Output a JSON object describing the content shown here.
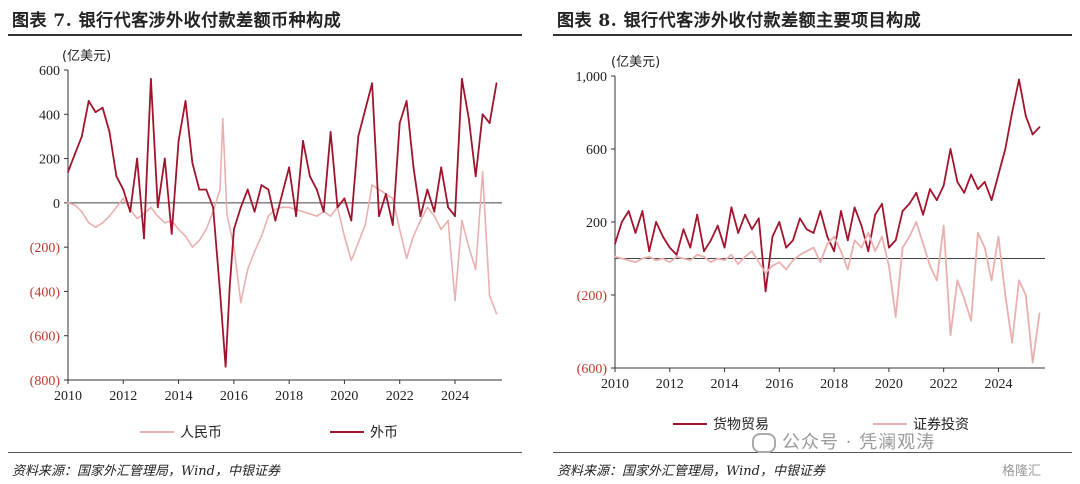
{
  "figures": [
    {
      "title": "图表 7. 银行代客涉外收付款差额币种构成",
      "source": "资料来源：国家外汇管理局，Wind，中银证券"
    },
    {
      "title": "图表 8. 银行代客涉外收付款差额主要项目构成",
      "source": "资料来源：国家外汇管理局，Wind，中银证券"
    }
  ],
  "watermark": {
    "text": "公众号 · 凭澜观涛",
    "logo_text": "格隆汇"
  },
  "chart_data": [
    {
      "type": "line",
      "unit_label": "(亿美元)",
      "ylim": [
        -800,
        600
      ],
      "yticks": [
        600,
        400,
        200,
        0,
        -200,
        -400,
        -600,
        -800
      ],
      "ytick_labels": [
        "600",
        "400",
        "200",
        "0",
        "(200)",
        "(400)",
        "(600)",
        "(800)"
      ],
      "negative_tick_color": "#c0392b",
      "xlim": [
        2010,
        2025.7
      ],
      "xticks": [
        "2010",
        "2012",
        "2014",
        "2016",
        "2018",
        "2020",
        "2022",
        "2024"
      ],
      "grid": false,
      "legend_position": "bottom",
      "series": [
        {
          "name": "人民币",
          "color": "#eab0b0",
          "x": [
            2010.0,
            2010.25,
            2010.5,
            2010.75,
            2011.0,
            2011.25,
            2011.5,
            2011.75,
            2012.0,
            2012.25,
            2012.5,
            2012.75,
            2013.0,
            2013.25,
            2013.5,
            2013.75,
            2014.0,
            2014.25,
            2014.5,
            2014.75,
            2015.0,
            2015.25,
            2015.5,
            2015.6,
            2015.75,
            2016.0,
            2016.25,
            2016.5,
            2016.75,
            2017.0,
            2017.25,
            2017.5,
            2017.75,
            2018.0,
            2018.25,
            2018.5,
            2018.75,
            2019.0,
            2019.25,
            2019.5,
            2019.75,
            2020.0,
            2020.25,
            2020.5,
            2020.75,
            2021.0,
            2021.25,
            2021.5,
            2021.75,
            2022.0,
            2022.25,
            2022.5,
            2022.75,
            2023.0,
            2023.25,
            2023.5,
            2023.75,
            2024.0,
            2024.25,
            2024.5,
            2024.75,
            2025.0,
            2025.25,
            2025.5
          ],
          "y": [
            0,
            -10,
            -40,
            -90,
            -110,
            -90,
            -60,
            -20,
            20,
            -30,
            -70,
            -50,
            -20,
            -60,
            -90,
            -80,
            -120,
            -150,
            -200,
            -170,
            -120,
            -40,
            60,
            380,
            -50,
            -200,
            -450,
            -300,
            -220,
            -150,
            -60,
            -30,
            -20,
            -20,
            -30,
            -40,
            -50,
            -60,
            -40,
            -60,
            -20,
            -150,
            -260,
            -180,
            -100,
            80,
            60,
            40,
            20,
            -120,
            -250,
            -150,
            -80,
            -20,
            -60,
            -120,
            -80,
            -440,
            -80,
            -200,
            -300,
            140,
            -420,
            -500
          ]
        },
        {
          "name": "外币",
          "color": "#a0152d",
          "x": [
            2010.0,
            2010.25,
            2010.5,
            2010.75,
            2011.0,
            2011.25,
            2011.5,
            2011.75,
            2012.0,
            2012.25,
            2012.5,
            2012.75,
            2013.0,
            2013.25,
            2013.5,
            2013.75,
            2014.0,
            2014.25,
            2014.5,
            2014.75,
            2015.0,
            2015.25,
            2015.5,
            2015.7,
            2015.85,
            2016.0,
            2016.25,
            2016.5,
            2016.75,
            2017.0,
            2017.25,
            2017.5,
            2017.75,
            2018.0,
            2018.25,
            2018.5,
            2018.75,
            2019.0,
            2019.25,
            2019.5,
            2019.75,
            2020.0,
            2020.25,
            2020.5,
            2020.75,
            2021.0,
            2021.25,
            2021.5,
            2021.75,
            2022.0,
            2022.25,
            2022.5,
            2022.75,
            2023.0,
            2023.25,
            2023.5,
            2023.75,
            2024.0,
            2024.25,
            2024.5,
            2024.75,
            2025.0,
            2025.25,
            2025.5
          ],
          "y": [
            140,
            220,
            300,
            460,
            410,
            430,
            320,
            120,
            60,
            -40,
            200,
            -160,
            560,
            -20,
            200,
            -140,
            280,
            460,
            180,
            60,
            60,
            -20,
            -400,
            -740,
            -380,
            -120,
            -20,
            60,
            -40,
            80,
            60,
            -80,
            40,
            160,
            -60,
            280,
            120,
            60,
            -40,
            320,
            -20,
            20,
            -80,
            300,
            420,
            540,
            -60,
            40,
            -100,
            360,
            460,
            160,
            -60,
            60,
            -40,
            160,
            -20,
            -60,
            560,
            380,
            120,
            400,
            360,
            540
          ]
        }
      ]
    },
    {
      "type": "line",
      "unit_label": "(亿美元)",
      "ylim": [
        -600,
        1000
      ],
      "yticks": [
        1000,
        600,
        200,
        -200,
        -600
      ],
      "ytick_labels": [
        "1,000",
        "600",
        "200",
        "(200)",
        "(600)"
      ],
      "negative_tick_color": "#c0392b",
      "xlim": [
        2010,
        2025.7
      ],
      "xticks": [
        "2010",
        "2012",
        "2014",
        "2016",
        "2018",
        "2020",
        "2022",
        "2024"
      ],
      "grid": false,
      "legend_position": "bottom",
      "series": [
        {
          "name": "货物贸易",
          "color": "#a0152d",
          "x": [
            2010.0,
            2010.25,
            2010.5,
            2010.75,
            2011.0,
            2011.25,
            2011.5,
            2011.75,
            2012.0,
            2012.25,
            2012.5,
            2012.75,
            2013.0,
            2013.25,
            2013.5,
            2013.75,
            2014.0,
            2014.25,
            2014.5,
            2014.75,
            2015.0,
            2015.25,
            2015.5,
            2015.75,
            2016.0,
            2016.25,
            2016.5,
            2016.75,
            2017.0,
            2017.25,
            2017.5,
            2017.75,
            2018.0,
            2018.25,
            2018.5,
            2018.75,
            2019.0,
            2019.25,
            2019.5,
            2019.75,
            2020.0,
            2020.25,
            2020.5,
            2020.75,
            2021.0,
            2021.25,
            2021.5,
            2021.75,
            2022.0,
            2022.25,
            2022.5,
            2022.75,
            2023.0,
            2023.25,
            2023.5,
            2023.75,
            2024.0,
            2024.25,
            2024.5,
            2024.75,
            2025.0,
            2025.25,
            2025.5
          ],
          "y": [
            80,
            200,
            260,
            140,
            260,
            40,
            200,
            120,
            60,
            20,
            160,
            60,
            240,
            40,
            100,
            180,
            60,
            280,
            140,
            240,
            160,
            220,
            -180,
            120,
            200,
            60,
            100,
            220,
            160,
            140,
            260,
            120,
            40,
            260,
            100,
            280,
            180,
            40,
            240,
            300,
            60,
            100,
            260,
            300,
            360,
            240,
            380,
            320,
            400,
            600,
            420,
            360,
            460,
            380,
            420,
            320,
            460,
            600,
            800,
            980,
            780,
            680,
            720
          ]
        },
        {
          "name": "证券投资",
          "color": "#eab0b0",
          "x": [
            2010.0,
            2010.25,
            2010.5,
            2010.75,
            2011.0,
            2011.25,
            2011.5,
            2011.75,
            2012.0,
            2012.25,
            2012.5,
            2012.75,
            2013.0,
            2013.25,
            2013.5,
            2013.75,
            2014.0,
            2014.25,
            2014.5,
            2014.75,
            2015.0,
            2015.25,
            2015.5,
            2015.75,
            2016.0,
            2016.25,
            2016.5,
            2016.75,
            2017.0,
            2017.25,
            2017.5,
            2017.75,
            2018.0,
            2018.25,
            2018.5,
            2018.75,
            2019.0,
            2019.25,
            2019.5,
            2019.75,
            2020.0,
            2020.25,
            2020.5,
            2020.75,
            2021.0,
            2021.25,
            2021.5,
            2021.75,
            2022.0,
            2022.25,
            2022.5,
            2022.75,
            2023.0,
            2023.25,
            2023.5,
            2023.75,
            2024.0,
            2024.25,
            2024.5,
            2024.75,
            2025.0,
            2025.25,
            2025.5
          ],
          "y": [
            10,
            0,
            -10,
            -20,
            0,
            10,
            -10,
            0,
            -20,
            10,
            0,
            -10,
            20,
            10,
            -20,
            0,
            -10,
            20,
            -30,
            10,
            40,
            -20,
            -80,
            -40,
            -20,
            -60,
            -10,
            20,
            40,
            60,
            -20,
            80,
            120,
            40,
            -60,
            100,
            60,
            140,
            40,
            120,
            -40,
            -320,
            60,
            120,
            200,
            80,
            -40,
            -120,
            180,
            -420,
            -120,
            -220,
            -340,
            140,
            60,
            -120,
            120,
            -200,
            -460,
            -120,
            -200,
            -570,
            -300
          ]
        }
      ]
    }
  ]
}
